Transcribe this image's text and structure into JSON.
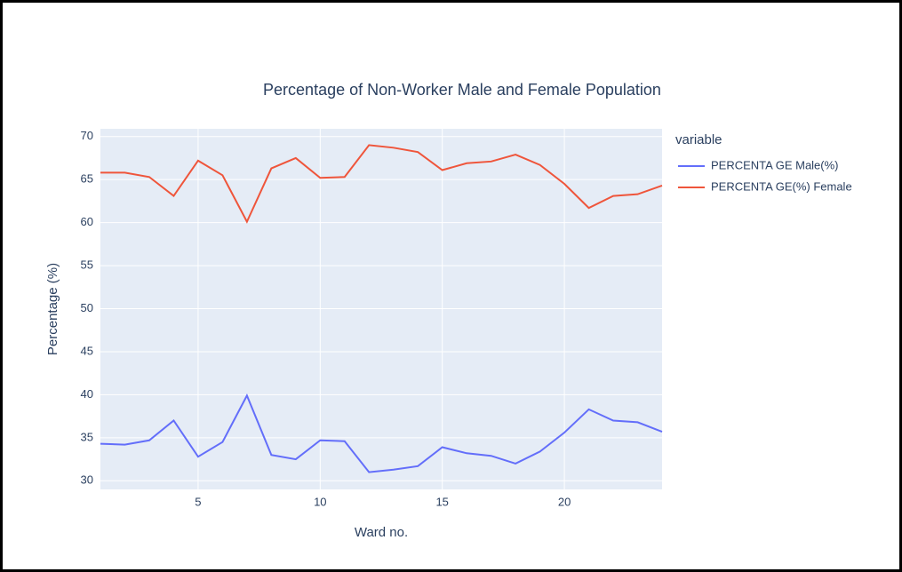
{
  "chart_data": {
    "type": "line",
    "title": "Percentage of Non-Worker Male and Female Population",
    "x_label": "Ward no.",
    "y_label": "Percentage (%)",
    "legend_title": "variable",
    "legend_position": "right",
    "x": [
      1,
      2,
      3,
      4,
      5,
      6,
      7,
      8,
      9,
      10,
      11,
      12,
      13,
      14,
      15,
      16,
      17,
      18,
      19,
      20,
      21,
      22,
      23,
      24
    ],
    "series": [
      {
        "name": "PERCENTA GE Male(%)",
        "color": "#636efa",
        "values": [
          34.3,
          34.2,
          34.7,
          37.0,
          32.8,
          34.5,
          39.9,
          33.0,
          32.5,
          34.7,
          34.6,
          31.0,
          31.3,
          31.7,
          33.9,
          33.2,
          32.9,
          32.0,
          33.4,
          35.6,
          38.3,
          37.0,
          36.8,
          35.7
        ]
      },
      {
        "name": "PERCENTA GE(%) Female",
        "color": "#EF553B",
        "values": [
          65.8,
          65.8,
          65.3,
          63.1,
          67.2,
          65.5,
          60.1,
          66.3,
          67.5,
          65.2,
          65.3,
          69.0,
          68.7,
          68.2,
          66.1,
          66.9,
          67.1,
          67.9,
          66.7,
          64.5,
          61.7,
          63.1,
          63.3,
          64.3
        ]
      }
    ],
    "xlim": [
      1,
      24
    ],
    "xticks": [
      5,
      10,
      15,
      20
    ],
    "ylim": [
      29,
      70.9
    ],
    "yticks": [
      30,
      35,
      40,
      45,
      50,
      55,
      60,
      65,
      70
    ],
    "grid": true
  }
}
